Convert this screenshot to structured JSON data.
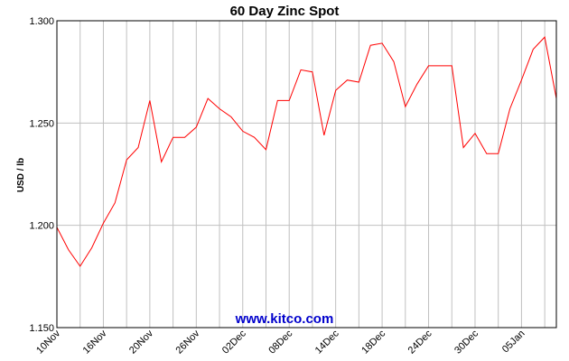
{
  "chart_data": {
    "type": "line",
    "title": "60 Day Zinc Spot",
    "xlabel": "",
    "ylabel": "USD / lb",
    "ylim": [
      1.15,
      1.3
    ],
    "y_ticks": [
      "1.150",
      "1.200",
      "1.250",
      "1.300"
    ],
    "y_tick_values": [
      1.15,
      1.2,
      1.25,
      1.3
    ],
    "x_tick_labels": [
      "10Nov",
      "16Nov",
      "20Nov",
      "26Nov",
      "02Dec",
      "08Dec",
      "14Dec",
      "18Dec",
      "24Dec",
      "30Dec",
      "05Jan"
    ],
    "x_tick_index": [
      0,
      4,
      8,
      12,
      16,
      20,
      24,
      28,
      32,
      36,
      40
    ],
    "grid": true,
    "series": [
      {
        "color": "#ff0000",
        "values": [
          1.199,
          1.188,
          1.18,
          1.189,
          1.201,
          1.211,
          1.232,
          1.238,
          1.261,
          1.231,
          1.243,
          1.243,
          1.248,
          1.262,
          1.257,
          1.253,
          1.246,
          1.243,
          1.237,
          1.261,
          1.261,
          1.276,
          1.275,
          1.244,
          1.266,
          1.271,
          1.27,
          1.288,
          1.289,
          1.28,
          1.258,
          1.269,
          1.278,
          1.278,
          1.278,
          1.238,
          1.245,
          1.235,
          1.235,
          1.257,
          1.271,
          1.286,
          1.292,
          1.262
        ]
      }
    ]
  },
  "watermark": "www.kitco.com",
  "colors": {
    "line": "#ff0000",
    "grid": "#c0c0c0",
    "axis": "#000000",
    "watermark": "#0000cc"
  }
}
